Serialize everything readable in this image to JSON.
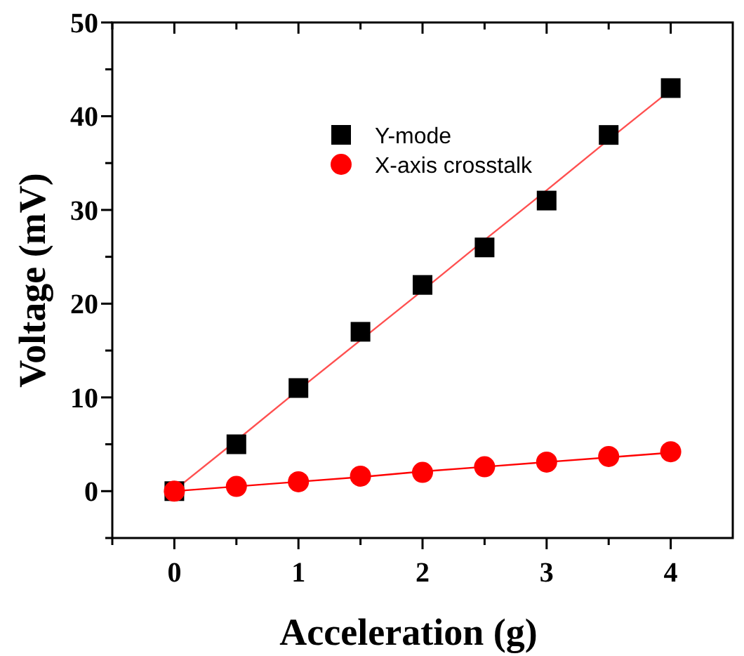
{
  "chart_data": {
    "type": "scatter",
    "xlabel": "Acceleration (g)",
    "ylabel": "Voltage (mV)",
    "x": [
      0,
      0.5,
      1,
      1.5,
      2,
      2.5,
      3,
      3.5,
      4
    ],
    "series": [
      {
        "name": "Y-mode",
        "color": "#000000",
        "marker": "square",
        "values": [
          0,
          5,
          11,
          17,
          22,
          26,
          31,
          38,
          43
        ]
      },
      {
        "name": "X-axis crosstalk",
        "color": "#ff0000",
        "marker": "circle",
        "values": [
          0,
          0.5,
          1.0,
          1.6,
          2.0,
          2.6,
          3.1,
          3.7,
          4.2
        ]
      },
      {
        "type": "line",
        "color": "#ff5050",
        "values": [
          0.1,
          5.4,
          10.8,
          16.1,
          21.4,
          26.8,
          32.1,
          37.5,
          42.8
        ]
      },
      {
        "type": "line",
        "color": "#ff0000",
        "values": [
          0,
          0.5,
          1.0,
          1.5,
          2.1,
          2.6,
          3.1,
          3.6,
          4.1
        ]
      }
    ],
    "xlim": [
      -0.5,
      4.5
    ],
    "ylim": [
      -5,
      50
    ],
    "xticks": [
      {
        "value": -0.5,
        "label": null
      },
      0,
      {
        "value": 0.5,
        "label": null
      },
      1,
      {
        "value": 1.5,
        "label": null
      },
      2,
      {
        "value": 2.5,
        "label": null
      },
      3,
      {
        "value": 3.5,
        "label": null
      },
      4
    ],
    "yticks": [
      {
        "value": -5,
        "label": null
      },
      0,
      {
        "value": 5,
        "label": null
      },
      10,
      {
        "value": 15,
        "label": null
      },
      20,
      {
        "value": 25,
        "label": null
      },
      30,
      {
        "value": 35,
        "label": null
      },
      40,
      {
        "value": 45,
        "label": null
      },
      50
    ],
    "legend": "top",
    "grid": false
  }
}
